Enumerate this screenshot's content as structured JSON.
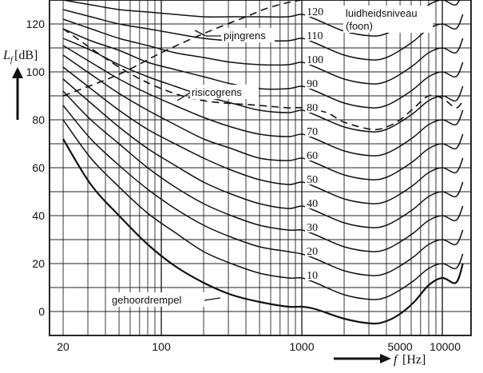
{
  "chart_data": {
    "type": "line",
    "title": "",
    "xlabel_symbol": "f",
    "xlabel_unit": "[Hz]",
    "ylabel_symbol": "L",
    "ylabel_subscript": "f",
    "ylabel_unit": "[dB]",
    "x_scale": "log",
    "xlim": [
      16,
      16000
    ],
    "ylim": [
      -10,
      130
    ],
    "grid": true,
    "x_tick_labels": [
      {
        "value": 20,
        "label": "20"
      },
      {
        "value": 100,
        "label": "100"
      },
      {
        "value": 1000,
        "label": "1000"
      },
      {
        "value": 5000,
        "label": "5000"
      },
      {
        "value": 10000,
        "label": "10000"
      }
    ],
    "y_tick_labels": [
      {
        "value": 0,
        "label": "0"
      },
      {
        "value": 20,
        "label": "20"
      },
      {
        "value": 40,
        "label": "40"
      },
      {
        "value": 60,
        "label": "60"
      },
      {
        "value": 80,
        "label": "80"
      },
      {
        "value": 100,
        "label": "100"
      },
      {
        "value": 120,
        "label": "120"
      }
    ],
    "curve_frequencies": [
      20,
      31.5,
      50,
      80,
      125,
      200,
      315,
      500,
      800,
      1000,
      1250,
      2000,
      3150,
      4000,
      5000,
      6300,
      8000,
      10000,
      12500,
      14000
    ],
    "series": [
      {
        "name": "gehoordrempel",
        "label": "",
        "values": [
          72,
          53,
          40,
          28,
          19,
          12,
          7,
          4,
          2,
          2,
          1,
          -3,
          -5,
          -4,
          -1,
          4,
          11,
          14,
          12,
          20
        ]
      },
      {
        "name": "",
        "label": "10",
        "values": [
          80,
          64,
          52,
          41,
          33,
          25,
          20,
          16,
          14,
          14,
          12,
          7,
          5,
          6,
          9,
          13,
          18,
          20,
          18,
          24
        ]
      },
      {
        "name": "",
        "label": "20",
        "values": [
          86,
          72,
          61,
          51,
          43,
          36,
          31,
          27,
          25,
          24,
          22,
          17,
          15,
          16,
          19,
          23,
          28,
          30,
          28,
          34
        ]
      },
      {
        "name": "",
        "label": "30",
        "values": [
          92,
          80,
          70,
          60,
          52,
          45,
          40,
          36,
          34,
          34,
          32,
          27,
          25,
          26,
          29,
          33,
          38,
          40,
          38,
          44
        ]
      },
      {
        "name": "",
        "label": "40",
        "values": [
          97,
          87,
          77,
          68,
          61,
          54,
          49,
          45,
          43,
          44,
          42,
          37,
          35,
          36,
          39,
          43,
          48,
          50,
          48,
          54
        ]
      },
      {
        "name": "",
        "label": "50",
        "values": [
          102,
          93,
          84,
          76,
          70,
          64,
          59,
          55,
          53,
          54,
          52,
          47,
          45,
          46,
          49,
          53,
          58,
          60,
          58,
          64
        ]
      },
      {
        "name": "",
        "label": "60",
        "values": [
          107,
          99,
          91,
          84,
          78,
          72,
          68,
          64,
          63,
          64,
          62,
          57,
          55,
          56,
          59,
          63,
          68,
          70,
          68,
          74
        ]
      },
      {
        "name": "",
        "label": "70",
        "values": [
          111,
          104,
          97,
          91,
          86,
          81,
          77,
          74,
          73,
          74,
          72,
          67,
          65,
          66,
          69,
          73,
          78,
          80,
          78,
          84
        ]
      },
      {
        "name": "",
        "label": "80",
        "values": [
          114,
          109,
          103,
          98,
          94,
          90,
          87,
          84,
          83,
          84,
          82,
          77,
          75,
          76,
          79,
          83,
          88,
          90,
          88,
          94
        ]
      },
      {
        "name": "",
        "label": "90",
        "values": [
          118,
          113,
          109,
          104,
          101,
          98,
          95,
          93,
          93,
          94,
          92,
          87,
          85,
          86,
          89,
          93,
          98,
          100,
          98,
          104
        ]
      },
      {
        "name": "",
        "label": "100",
        "values": [
          122,
          118,
          114,
          111,
          108,
          106,
          104,
          103,
          103,
          104,
          102,
          97,
          95,
          96,
          99,
          103,
          108,
          110,
          108,
          114
        ]
      },
      {
        "name": "",
        "label": "110",
        "values": [
          126,
          123,
          120,
          118,
          116,
          114,
          113,
          113,
          113,
          114,
          112,
          107,
          105,
          106,
          109,
          113,
          118,
          120,
          118,
          124
        ]
      },
      {
        "name": "",
        "label": "120",
        "values": [
          130,
          128,
          126,
          125,
          124,
          123,
          123,
          123,
          123,
          124,
          122,
          117,
          115,
          116,
          119,
          123,
          128,
          130,
          128,
          134
        ]
      }
    ],
    "reference_lines": [
      {
        "name": "pijngrens",
        "style": "dashed",
        "x": [
          20,
          50,
          100,
          200,
          400,
          600,
          1000,
          2000,
          4000,
          6000
        ],
        "y": [
          90,
          99,
          108,
          116,
          123,
          127,
          130,
          131,
          131,
          131
        ]
      },
      {
        "name": "risicogrens",
        "style": "dashed",
        "x": [
          20,
          50,
          100,
          200,
          500,
          800,
          1000,
          1500,
          2000,
          3150,
          4000,
          5000,
          6300,
          8000,
          10000,
          12500,
          14000
        ],
        "y": [
          118,
          102,
          93,
          88,
          86,
          85,
          85,
          83,
          79,
          76,
          77,
          80,
          85,
          90,
          89,
          85,
          88
        ]
      }
    ],
    "annotations": {
      "loudness_level_title_line1": "luidheidsniveau",
      "loudness_level_title_line2": "(foon)",
      "pain_threshold": "pijngrens",
      "risk_threshold": "risicogrens",
      "hearing_threshold": "gehoordrempel"
    }
  }
}
